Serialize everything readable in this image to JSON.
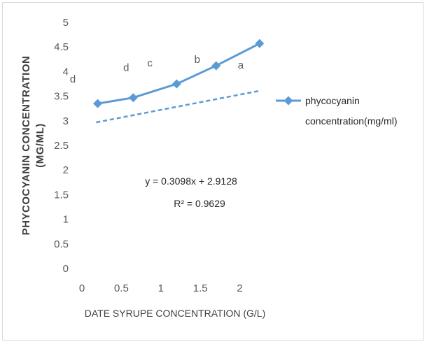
{
  "chart_data": {
    "type": "line",
    "title": "",
    "xlabel": "DATE SYRUPE CONCENTRATION (G/L)",
    "ylabel_line1": "PHYCOCYANIN CONCENTRATION",
    "ylabel_line2": "(MG/ML)",
    "xlim": [
      0,
      2.5
    ],
    "ylim": [
      0,
      5
    ],
    "x_ticks": [
      "0",
      "0.5",
      "1",
      "1.5",
      "2"
    ],
    "y_ticks": [
      "0",
      "0.5",
      "1",
      "1.5",
      "2",
      "2.5",
      "3",
      "3.5",
      "4",
      "4.5",
      "5"
    ],
    "grid": false,
    "legend_position": "right",
    "series": [
      {
        "name": "phycocyanin concentration(mg/ml)",
        "color": "#5b9bd5",
        "marker": "diamond",
        "x": [
          0.2,
          0.65,
          1.2,
          1.7,
          2.25
        ],
        "y": [
          3.35,
          3.47,
          3.75,
          4.12,
          4.57
        ]
      }
    ],
    "trendline": {
      "style": "dashed",
      "color": "#5b9bd5",
      "equation": "y = 0.3098x + 2.9128",
      "r_squared": "R² = 0.9629",
      "slope": 0.3098,
      "intercept": 2.9128
    },
    "significance_labels": [
      {
        "text": "d",
        "x": 0.2
      },
      {
        "text": "d",
        "x": 0.65
      },
      {
        "text": "c",
        "x": 0.95
      },
      {
        "text": "b",
        "x": 1.55
      },
      {
        "text": "a",
        "x": 2.1
      }
    ]
  }
}
